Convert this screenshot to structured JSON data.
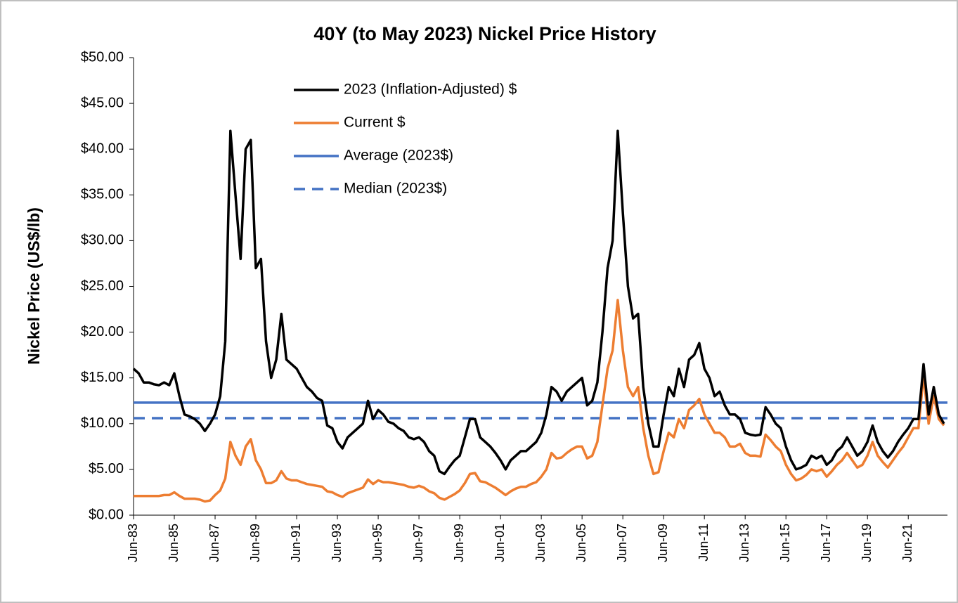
{
  "chart_data": {
    "type": "line",
    "title": "40Y (to May 2023) Nickel Price History",
    "y_label": "Nickel Price (US$/lb)",
    "categories": [
      "Jun-83",
      null,
      null,
      null,
      null,
      null,
      null,
      null,
      "Jun-85",
      null,
      null,
      null,
      null,
      null,
      null,
      null,
      "Jun-87",
      null,
      null,
      null,
      null,
      null,
      null,
      null,
      "Jun-89",
      null,
      null,
      null,
      null,
      null,
      null,
      null,
      "Jun-91",
      null,
      null,
      null,
      null,
      null,
      null,
      null,
      "Jun-93",
      null,
      null,
      null,
      null,
      null,
      null,
      null,
      "Jun-95",
      null,
      null,
      null,
      null,
      null,
      null,
      null,
      "Jun-97",
      null,
      null,
      null,
      null,
      null,
      null,
      null,
      "Jun-99",
      null,
      null,
      null,
      null,
      null,
      null,
      null,
      "Jun-01",
      null,
      null,
      null,
      null,
      null,
      null,
      null,
      "Jun-03",
      null,
      null,
      null,
      null,
      null,
      null,
      null,
      "Jun-05",
      null,
      null,
      null,
      null,
      null,
      null,
      null,
      "Jun-07",
      null,
      null,
      null,
      null,
      null,
      null,
      null,
      "Jun-09",
      null,
      null,
      null,
      null,
      null,
      null,
      null,
      "Jun-11",
      null,
      null,
      null,
      null,
      null,
      null,
      null,
      "Jun-13",
      null,
      null,
      null,
      null,
      null,
      null,
      null,
      "Jun-15",
      null,
      null,
      null,
      null,
      null,
      null,
      null,
      "Jun-17",
      null,
      null,
      null,
      null,
      null,
      null,
      null,
      "Jun-19",
      null,
      null,
      null,
      null,
      null,
      null,
      null,
      "Jun-21",
      null,
      null,
      null,
      null,
      null,
      null,
      null
    ],
    "series": [
      {
        "name": "2023 (Inflation-Adjusted) $",
        "color": "#000000",
        "values": [
          16,
          15.5,
          14.5,
          14.5,
          14.3,
          14.2,
          14.5,
          14.2,
          15.5,
          13,
          11,
          10.8,
          10.5,
          10,
          9.2,
          10,
          11,
          13,
          19,
          42,
          35,
          28,
          40,
          41,
          27,
          28,
          19,
          15,
          17,
          22,
          17,
          16.5,
          16,
          15,
          14,
          13.5,
          12.8,
          12.5,
          9.8,
          9.5,
          8,
          7.3,
          8.5,
          9,
          9.5,
          10,
          12.5,
          10.5,
          11.5,
          11,
          10.2,
          10,
          9.5,
          9.2,
          8.5,
          8.3,
          8.5,
          8,
          7,
          6.5,
          4.8,
          4.5,
          5.3,
          6,
          6.5,
          8.5,
          10.5,
          10.5,
          8.5,
          8,
          7.5,
          6.8,
          6,
          5,
          6,
          6.5,
          7,
          7,
          7.5,
          8,
          9,
          11,
          14,
          13.5,
          12.5,
          13.5,
          14,
          14.5,
          15,
          12,
          12.5,
          14.5,
          20,
          27,
          30,
          42,
          33,
          25,
          21.5,
          22,
          14,
          10,
          7.5,
          7.5,
          11,
          14,
          13,
          16,
          14,
          17,
          17.5,
          18.8,
          16,
          15,
          13,
          13.5,
          12,
          11,
          11,
          10.5,
          9,
          8.8,
          8.7,
          8.8,
          11.8,
          11,
          10,
          9.5,
          7.5,
          6,
          5,
          5.2,
          5.5,
          6.5,
          6.2,
          6.5,
          5.5,
          6,
          7,
          7.5,
          8.5,
          7.5,
          6.5,
          7,
          8,
          9.8,
          8,
          7,
          6.3,
          7,
          8,
          8.8,
          9.5,
          10.5,
          10.5,
          16.5,
          11,
          14,
          11,
          10
        ]
      },
      {
        "name": "Current $",
        "color": "#ed7d31",
        "values": [
          2.1,
          2.1,
          2.1,
          2.1,
          2.1,
          2.1,
          2.2,
          2.2,
          2.5,
          2.1,
          1.8,
          1.8,
          1.8,
          1.7,
          1.5,
          1.6,
          2.2,
          2.7,
          4,
          8,
          6.5,
          5.5,
          7.5,
          8.3,
          6,
          5,
          3.5,
          3.5,
          3.8,
          4.8,
          4,
          3.8,
          3.8,
          3.6,
          3.4,
          3.3,
          3.2,
          3.1,
          2.6,
          2.5,
          2.2,
          2,
          2.4,
          2.6,
          2.8,
          3,
          3.9,
          3.4,
          3.8,
          3.6,
          3.6,
          3.5,
          3.4,
          3.3,
          3.1,
          3,
          3.2,
          3,
          2.6,
          2.4,
          1.9,
          1.7,
          2,
          2.3,
          2.7,
          3.5,
          4.5,
          4.6,
          3.7,
          3.6,
          3.3,
          3,
          2.6,
          2.2,
          2.6,
          2.9,
          3.1,
          3.1,
          3.4,
          3.6,
          4.2,
          5,
          6.8,
          6.2,
          6.3,
          6.8,
          7.2,
          7.5,
          7.5,
          6.2,
          6.5,
          8,
          12,
          16,
          18,
          23.5,
          18,
          14,
          13,
          14,
          9.5,
          6.5,
          4.5,
          4.7,
          7,
          9,
          8.5,
          10.5,
          9.5,
          11.5,
          12,
          12.7,
          11,
          10,
          9,
          9,
          8.5,
          7.5,
          7.5,
          7.8,
          6.8,
          6.5,
          6.5,
          6.4,
          8.8,
          8.2,
          7.5,
          7,
          5.5,
          4.5,
          3.8,
          4,
          4.4,
          5,
          4.8,
          5,
          4.2,
          4.8,
          5.5,
          6,
          6.8,
          6,
          5.2,
          5.5,
          6.5,
          8,
          6.5,
          5.8,
          5.2,
          6,
          6.8,
          7.5,
          8.5,
          9.5,
          9.5,
          15.3,
          10,
          13,
          10.5,
          9.8
        ]
      },
      {
        "name": "Average (2023$)",
        "color": "#4472c4",
        "value": 12.3
      },
      {
        "name": "Median (2023$)",
        "color": "#4472c4",
        "value": 10.6,
        "dashed": true
      }
    ],
    "ylim": [
      0,
      50
    ],
    "yticks": [
      {
        "value": 0,
        "label": "$0.00"
      },
      {
        "value": 5,
        "label": "$5.00"
      },
      {
        "value": 10,
        "label": "$10.00"
      },
      {
        "value": 15,
        "label": "$15.00"
      },
      {
        "value": 20,
        "label": "$20.00"
      },
      {
        "value": 25,
        "label": "$25.00"
      },
      {
        "value": 30,
        "label": "$30.00"
      },
      {
        "value": 35,
        "label": "$35.00"
      },
      {
        "value": 40,
        "label": "$40.00"
      },
      {
        "value": 45,
        "label": "$45.00"
      },
      {
        "value": 50,
        "label": "$50.00"
      }
    ],
    "grid": false,
    "legend": "upper left"
  }
}
